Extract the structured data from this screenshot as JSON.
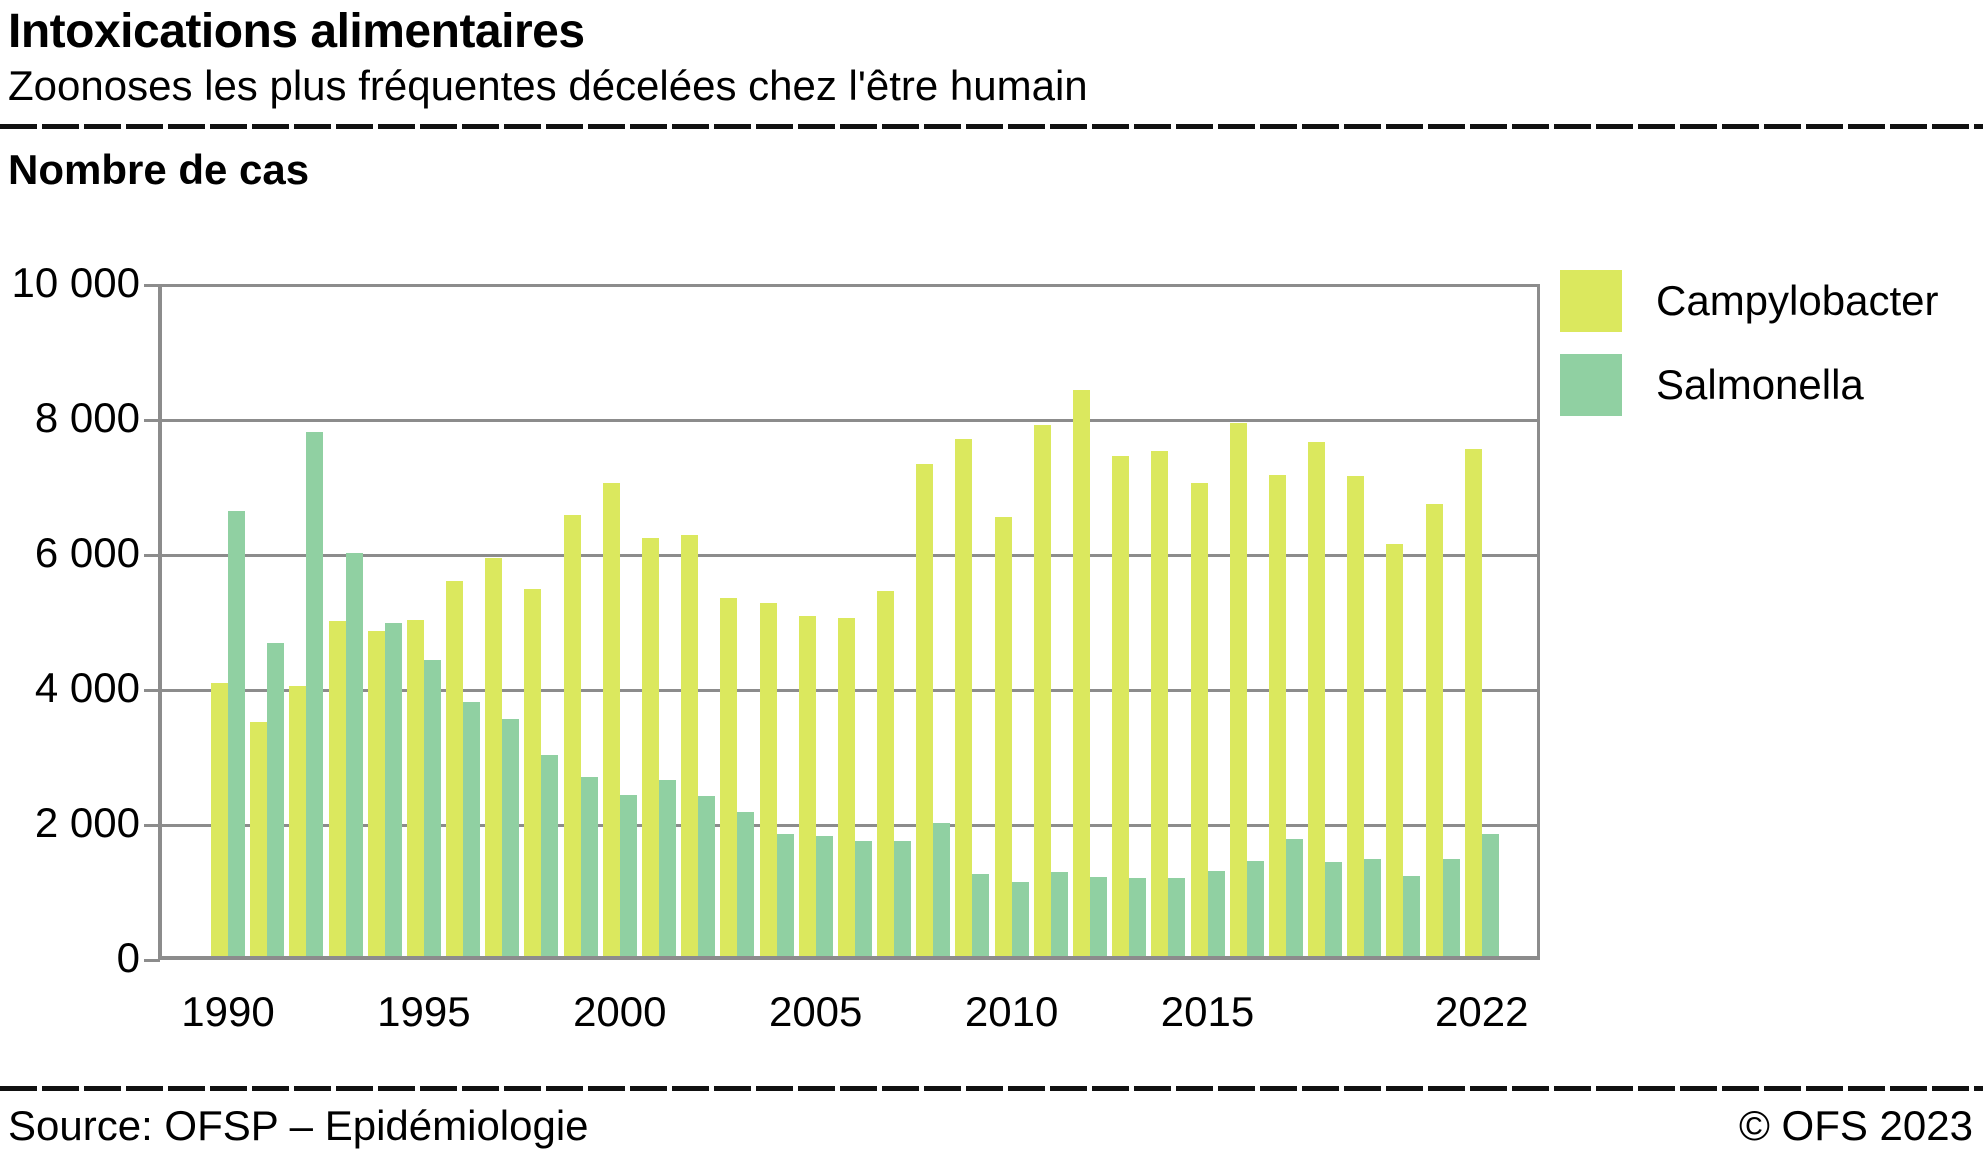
{
  "header": {
    "title": "Intoxications alimentaires",
    "subtitle": "Zoonoses les plus fréquentes décelées chez l'être humain"
  },
  "y_axis_title": "Nombre de cas",
  "footer": {
    "source": "Source: OFSP – Epidémiologie",
    "copyright": "© OFS 2023"
  },
  "colors": {
    "campylobacter": "#dbe85e",
    "salmonella": "#90d0a2",
    "gridline": "#8c8c8c",
    "rule": "#111111"
  },
  "chart_data": {
    "type": "bar",
    "title": "Intoxications alimentaires",
    "subtitle": "Zoonoses les plus fréquentes décelées chez l'être humain",
    "ylabel": "Nombre de cas",
    "xlabel": "",
    "ylim": [
      0,
      10000
    ],
    "grid": true,
    "legend_position": "top-right",
    "yticks": [
      0,
      2000,
      4000,
      6000,
      8000,
      10000
    ],
    "ytick_labels": [
      "0",
      "2 000",
      "4 000",
      "6 000",
      "8 000",
      "10 000"
    ],
    "xtick_years": [
      1990,
      1995,
      2000,
      2005,
      2010,
      2015,
      2022
    ],
    "xtick_labels": [
      "1990",
      "1995",
      "2000",
      "2005",
      "2010",
      "2015",
      "2022"
    ],
    "categories": [
      1990,
      1991,
      1992,
      1993,
      1994,
      1995,
      1996,
      1997,
      1998,
      1999,
      2000,
      2001,
      2002,
      2003,
      2004,
      2005,
      2006,
      2007,
      2008,
      2009,
      2010,
      2011,
      2012,
      2013,
      2014,
      2015,
      2016,
      2017,
      2018,
      2019,
      2020,
      2021,
      2022
    ],
    "series": [
      {
        "name": "Campylobacter",
        "color": "#dbe85e",
        "values": [
          4100,
          3530,
          4060,
          5020,
          4880,
          5030,
          5620,
          5950,
          5500,
          6590,
          7060,
          6250,
          6300,
          5370,
          5290,
          5100,
          5060,
          5470,
          7350,
          7720,
          6560,
          7930,
          8440,
          7460,
          7540,
          7060,
          7960,
          7190,
          7680,
          7170,
          6160,
          6760,
          7570
        ]
      },
      {
        "name": "Salmonella",
        "color": "#90d0a2",
        "values": [
          6650,
          4700,
          7820,
          6030,
          5000,
          4450,
          3820,
          3570,
          3030,
          2710,
          2440,
          2660,
          2430,
          2190,
          1860,
          1840,
          1770,
          1760,
          2030,
          1280,
          1160,
          1300,
          1230,
          1220,
          1210,
          1320,
          1470,
          1790,
          1450,
          1490,
          1250,
          1490,
          1860
        ]
      }
    ]
  }
}
